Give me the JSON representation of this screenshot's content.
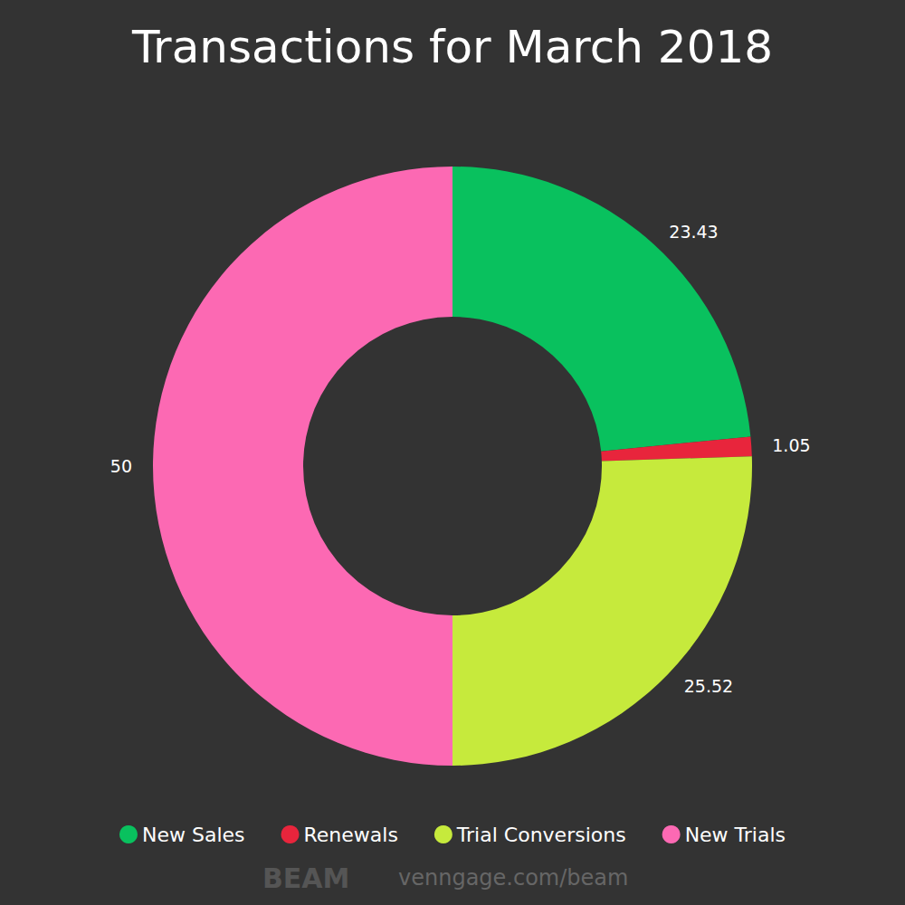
{
  "chart_data": {
    "type": "pie",
    "title": "Transactions for March 2018",
    "categories": [
      "New Sales",
      "Renewals",
      "Trial Conversions",
      "New Trials"
    ],
    "values": [
      23.43,
      1.05,
      25.52,
      50
    ],
    "colors": [
      "#09c15e",
      "#e8253c",
      "#c6ea3c",
      "#fc69b3"
    ],
    "data_labels": true,
    "legend": "bottom",
    "annotations": [
      "BEAM",
      "venngage.com/beam"
    ]
  }
}
